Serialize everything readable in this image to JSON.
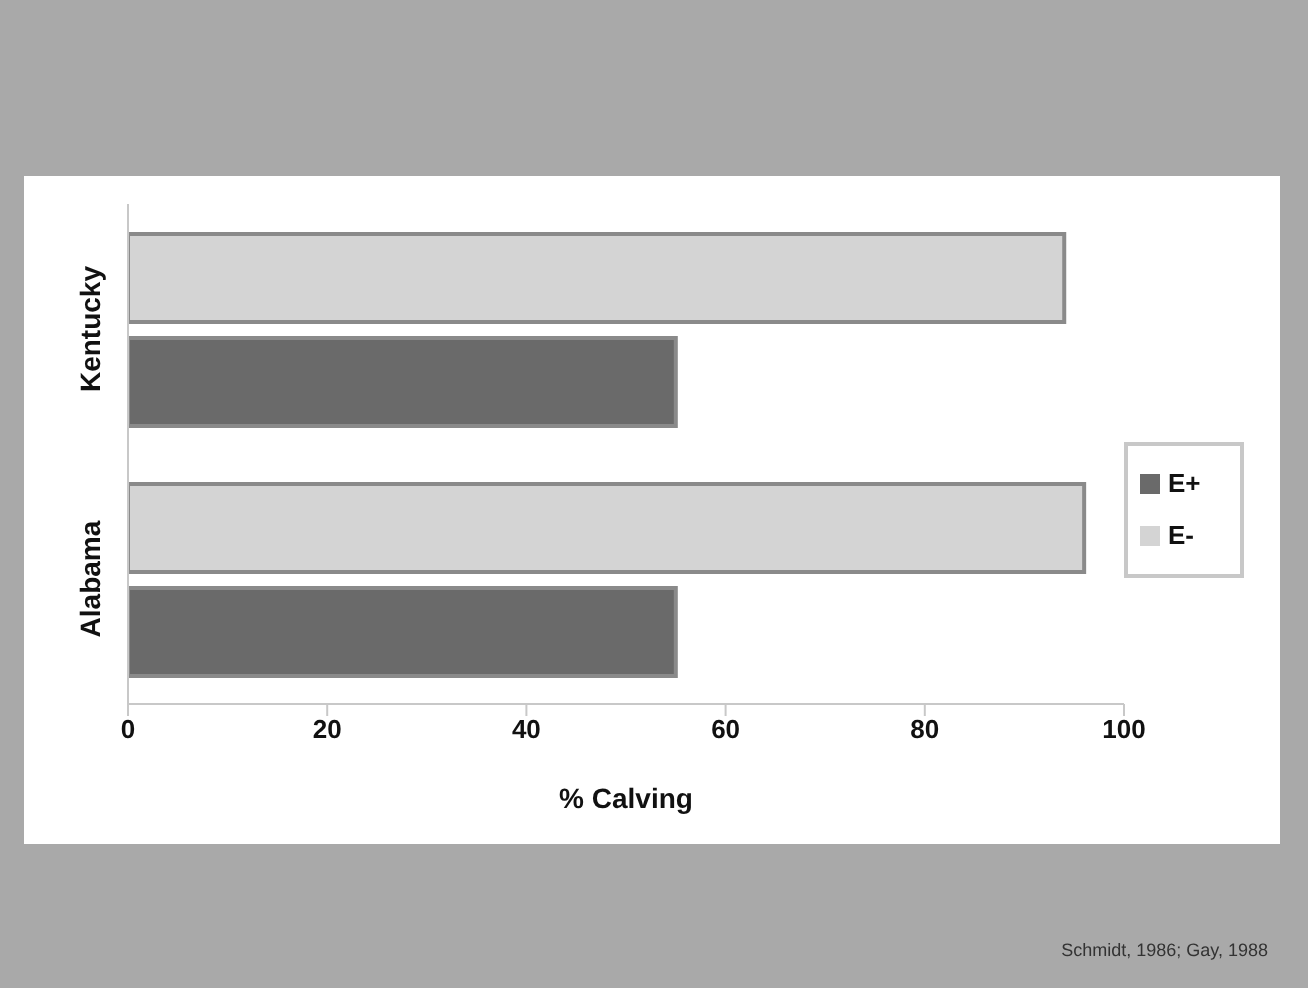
{
  "chart_data": {
    "type": "bar",
    "orientation": "horizontal",
    "xlabel": "% Calving",
    "categories": [
      "Kentucky",
      "Alabama"
    ],
    "series": [
      {
        "name": "E-",
        "color": "#d4d4d4",
        "values": [
          94,
          96
        ]
      },
      {
        "name": "E+",
        "color": "#6a6a6a",
        "values": [
          55,
          55
        ]
      }
    ],
    "xlim": [
      0,
      100
    ],
    "xticks": [
      0,
      20,
      40,
      60,
      80,
      100
    ],
    "grid": false,
    "legend": "right",
    "annotations": [
      "Schmidt, 1986; Gay, 1988"
    ]
  }
}
